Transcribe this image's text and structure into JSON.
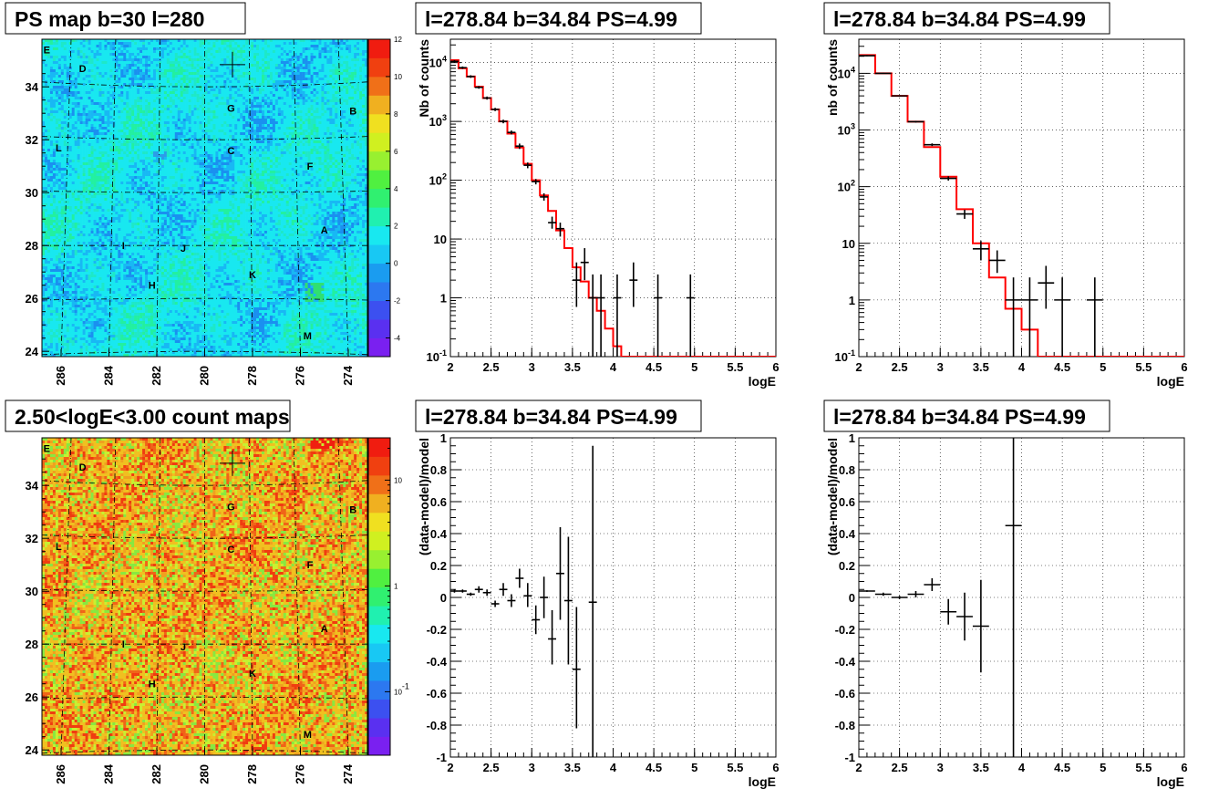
{
  "chart_data": [
    {
      "id": "psmap",
      "type": "heatmap",
      "title": "PS map b=30 l=280",
      "x_ticks": [
        "286",
        "284",
        "282",
        "280",
        "278",
        "276",
        "274"
      ],
      "y_ticks": [
        "24",
        "26",
        "28",
        "30",
        "32",
        "34"
      ],
      "xlim": [
        286.8,
        273.2
      ],
      "ylim": [
        23.8,
        35.8
      ],
      "palette_ticks": [
        "-4",
        "-2",
        "0",
        "2",
        "4",
        "6",
        "8",
        "10",
        "12"
      ],
      "palette_range": [
        -5,
        12
      ],
      "base_color": "#18e8f0",
      "regions": [
        {
          "label": "E",
          "l": 286.6,
          "b": 35.4
        },
        {
          "label": "D",
          "l": 285.1,
          "b": 34.7
        },
        {
          "label": "G",
          "l": 278.9,
          "b": 33.2
        },
        {
          "label": "B",
          "l": 273.8,
          "b": 33.1
        },
        {
          "label": "L",
          "l": 286.1,
          "b": 31.7
        },
        {
          "label": "C",
          "l": 278.9,
          "b": 31.6
        },
        {
          "label": "F",
          "l": 275.6,
          "b": 31.0
        },
        {
          "label": "A",
          "l": 275.0,
          "b": 28.6
        },
        {
          "label": "I",
          "l": 283.4,
          "b": 28.0
        },
        {
          "label": "J",
          "l": 280.9,
          "b": 27.9
        },
        {
          "label": "H",
          "l": 282.2,
          "b": 26.5
        },
        {
          "label": "K",
          "l": 278.0,
          "b": 26.9
        },
        {
          "label": "M",
          "l": 275.7,
          "b": 24.6
        }
      ],
      "marker": {
        "l": 278.84,
        "b": 34.84
      }
    },
    {
      "id": "countmap",
      "type": "heatmap",
      "title": "2.50<logE<3.00 count maps",
      "x_ticks": [
        "286",
        "284",
        "282",
        "280",
        "278",
        "276",
        "274"
      ],
      "y_ticks": [
        "24",
        "26",
        "28",
        "30",
        "32",
        "34"
      ],
      "xlim": [
        286.8,
        273.2
      ],
      "ylim": [
        23.8,
        35.8
      ],
      "palette_ticks": [
        "10",
        "1",
        "10-1"
      ],
      "palette_range_log": [
        -1.6,
        1.4
      ],
      "base_color": "#f0c020",
      "regions": [
        {
          "label": "E",
          "l": 286.6,
          "b": 35.4
        },
        {
          "label": "D",
          "l": 285.1,
          "b": 34.7
        },
        {
          "label": "G",
          "l": 278.9,
          "b": 33.2
        },
        {
          "label": "B",
          "l": 273.8,
          "b": 33.1
        },
        {
          "label": "L",
          "l": 286.1,
          "b": 31.7
        },
        {
          "label": "C",
          "l": 278.9,
          "b": 31.6
        },
        {
          "label": "F",
          "l": 275.6,
          "b": 31.0
        },
        {
          "label": "A",
          "l": 275.0,
          "b": 28.6
        },
        {
          "label": "I",
          "l": 283.4,
          "b": 28.0
        },
        {
          "label": "J",
          "l": 280.9,
          "b": 27.9
        },
        {
          "label": "H",
          "l": 282.2,
          "b": 26.5
        },
        {
          "label": "K",
          "l": 278.0,
          "b": 26.9
        },
        {
          "label": "M",
          "l": 275.7,
          "b": 24.6
        }
      ],
      "marker": {
        "l": 278.84,
        "b": 34.84
      }
    },
    {
      "id": "spec1",
      "type": "line",
      "title": "l=278.84 b=34.84 PS=4.99",
      "xlabel": "logE",
      "ylabel": "Nb of counts",
      "xlim": [
        2,
        6
      ],
      "ylim_log": [
        0.1,
        25000
      ],
      "x_ticks": [
        "2",
        "2.5",
        "3",
        "3.5",
        "4",
        "4.5",
        "5",
        "5.5",
        "6"
      ],
      "y_ticks": [
        "10-1",
        "1",
        "10",
        "102",
        "103",
        "104"
      ],
      "bin_width": 0.1,
      "model": [
        {
          "x0": 2.0,
          "x1": 2.1,
          "y": 11000
        },
        {
          "x0": 2.1,
          "x1": 2.2,
          "y": 8000
        },
        {
          "x0": 2.2,
          "x1": 2.3,
          "y": 5800
        },
        {
          "x0": 2.3,
          "x1": 2.4,
          "y": 3900
        },
        {
          "x0": 2.4,
          "x1": 2.5,
          "y": 2500
        },
        {
          "x0": 2.5,
          "x1": 2.6,
          "y": 1600
        },
        {
          "x0": 2.6,
          "x1": 2.7,
          "y": 1000
        },
        {
          "x0": 2.7,
          "x1": 2.8,
          "y": 620
        },
        {
          "x0": 2.8,
          "x1": 2.9,
          "y": 360
        },
        {
          "x0": 2.9,
          "x1": 3.0,
          "y": 190
        },
        {
          "x0": 3.0,
          "x1": 3.1,
          "y": 100
        },
        {
          "x0": 3.1,
          "x1": 3.2,
          "y": 55
        },
        {
          "x0": 3.2,
          "x1": 3.3,
          "y": 30
        },
        {
          "x0": 3.3,
          "x1": 3.4,
          "y": 14
        },
        {
          "x0": 3.4,
          "x1": 3.5,
          "y": 7
        },
        {
          "x0": 3.5,
          "x1": 3.6,
          "y": 3.3
        },
        {
          "x0": 3.6,
          "x1": 3.7,
          "y": 1.9
        },
        {
          "x0": 3.7,
          "x1": 3.8,
          "y": 1.0
        },
        {
          "x0": 3.8,
          "x1": 3.9,
          "y": 0.6
        },
        {
          "x0": 3.9,
          "x1": 4.0,
          "y": 0.3
        },
        {
          "x0": 4.0,
          "x1": 4.1,
          "y": 0.15
        },
        {
          "x0": 4.1,
          "x1": 6.0,
          "y": 0.1
        }
      ],
      "data": [
        {
          "x": 2.05,
          "y": 10500,
          "lo": 10000,
          "hi": 11000
        },
        {
          "x": 2.15,
          "y": 8200,
          "lo": 7800,
          "hi": 8600
        },
        {
          "x": 2.25,
          "y": 5800,
          "lo": 5500,
          "hi": 6100
        },
        {
          "x": 2.35,
          "y": 3800,
          "lo": 3600,
          "hi": 4000
        },
        {
          "x": 2.45,
          "y": 2500,
          "lo": 2350,
          "hi": 2650
        },
        {
          "x": 2.55,
          "y": 1600,
          "lo": 1500,
          "hi": 1700
        },
        {
          "x": 2.65,
          "y": 1000,
          "lo": 930,
          "hi": 1070
        },
        {
          "x": 2.75,
          "y": 650,
          "lo": 600,
          "hi": 700
        },
        {
          "x": 2.85,
          "y": 380,
          "lo": 340,
          "hi": 420
        },
        {
          "x": 2.95,
          "y": 180,
          "lo": 160,
          "hi": 200
        },
        {
          "x": 3.05,
          "y": 95,
          "lo": 85,
          "hi": 105
        },
        {
          "x": 3.15,
          "y": 52,
          "lo": 45,
          "hi": 60
        },
        {
          "x": 3.25,
          "y": 19,
          "lo": 15,
          "hi": 24
        },
        {
          "x": 3.35,
          "y": 15,
          "lo": 11,
          "hi": 19
        },
        {
          "x": 3.55,
          "y": 2,
          "lo": 0.7,
          "hi": 4
        },
        {
          "x": 3.65,
          "y": 4,
          "lo": 2,
          "hi": 7
        },
        {
          "x": 3.75,
          "y": 1,
          "lo": 0.1,
          "hi": 2.5
        },
        {
          "x": 3.85,
          "y": 1,
          "lo": 0.1,
          "hi": 2.5
        },
        {
          "x": 4.05,
          "y": 1,
          "lo": 0.1,
          "hi": 2.5
        },
        {
          "x": 4.25,
          "y": 2,
          "lo": 0.7,
          "hi": 4
        },
        {
          "x": 4.55,
          "y": 1,
          "lo": 0.1,
          "hi": 2.5
        },
        {
          "x": 4.95,
          "y": 1,
          "lo": 0.1,
          "hi": 2.5
        }
      ]
    },
    {
      "id": "spec2",
      "type": "line",
      "title": "l=278.84 b=34.84 PS=4.99",
      "xlabel": "logE",
      "ylabel": "nb of counts",
      "xlim": [
        2,
        6
      ],
      "ylim_log": [
        0.1,
        40000
      ],
      "x_ticks": [
        "2",
        "2.5",
        "3",
        "3.5",
        "4",
        "4.5",
        "5",
        "5.5",
        "6"
      ],
      "y_ticks": [
        "10-1",
        "1",
        "10",
        "102",
        "103",
        "104"
      ],
      "bin_width": 0.2,
      "model": [
        {
          "x0": 2.0,
          "x1": 2.2,
          "y": 21000
        },
        {
          "x0": 2.2,
          "x1": 2.4,
          "y": 10000
        },
        {
          "x0": 2.4,
          "x1": 2.6,
          "y": 4000
        },
        {
          "x0": 2.6,
          "x1": 2.8,
          "y": 1400
        },
        {
          "x0": 2.8,
          "x1": 3.0,
          "y": 500
        },
        {
          "x0": 3.0,
          "x1": 3.2,
          "y": 150
        },
        {
          "x0": 3.2,
          "x1": 3.4,
          "y": 40
        },
        {
          "x0": 3.4,
          "x1": 3.6,
          "y": 10
        },
        {
          "x0": 3.6,
          "x1": 3.8,
          "y": 2.5
        },
        {
          "x0": 3.8,
          "x1": 4.0,
          "y": 0.7
        },
        {
          "x0": 4.0,
          "x1": 4.2,
          "y": 0.3
        },
        {
          "x0": 4.2,
          "x1": 6.0,
          "y": 0.1
        }
      ],
      "data": [
        {
          "x": 2.1,
          "y": 20500,
          "lo": 20000,
          "hi": 21000
        },
        {
          "x": 2.3,
          "y": 10000,
          "lo": 9800,
          "hi": 10200
        },
        {
          "x": 2.5,
          "y": 4000,
          "lo": 3900,
          "hi": 4100
        },
        {
          "x": 2.7,
          "y": 1400,
          "lo": 1350,
          "hi": 1450
        },
        {
          "x": 2.9,
          "y": 550,
          "lo": 520,
          "hi": 580
        },
        {
          "x": 3.1,
          "y": 140,
          "lo": 128,
          "hi": 152
        },
        {
          "x": 3.3,
          "y": 33,
          "lo": 27,
          "hi": 39
        },
        {
          "x": 3.5,
          "y": 8,
          "lo": 5,
          "hi": 11
        },
        {
          "x": 3.7,
          "y": 5,
          "lo": 3,
          "hi": 7.5
        },
        {
          "x": 3.9,
          "y": 1,
          "lo": 0.1,
          "hi": 2.5
        },
        {
          "x": 4.1,
          "y": 1,
          "lo": 0.1,
          "hi": 2.5
        },
        {
          "x": 4.3,
          "y": 2,
          "lo": 0.7,
          "hi": 4
        },
        {
          "x": 4.5,
          "y": 1,
          "lo": 0.1,
          "hi": 2.5
        },
        {
          "x": 4.9,
          "y": 1,
          "lo": 0.1,
          "hi": 2.5
        }
      ]
    },
    {
      "id": "res1",
      "type": "scatter",
      "title": "l=278.84 b=34.84 PS=4.99",
      "xlabel": "logE",
      "ylabel": "(data-model)/model",
      "xlim": [
        2,
        6
      ],
      "ylim": [
        -1,
        1
      ],
      "x_ticks": [
        "2",
        "2.5",
        "3",
        "3.5",
        "4",
        "4.5",
        "5",
        "5.5",
        "6"
      ],
      "y_ticks": [
        "-1",
        "-0.8",
        "-0.6",
        "-0.4",
        "-0.2",
        "0",
        "0.2",
        "0.4",
        "0.6",
        "0.8",
        "1"
      ],
      "bin_width": 0.1,
      "data": [
        {
          "x": 2.05,
          "y": 0.04,
          "lo": 0.03,
          "hi": 0.05
        },
        {
          "x": 2.15,
          "y": 0.04,
          "lo": 0.03,
          "hi": 0.05
        },
        {
          "x": 2.25,
          "y": 0.02,
          "lo": 0.01,
          "hi": 0.03
        },
        {
          "x": 2.35,
          "y": 0.05,
          "lo": 0.03,
          "hi": 0.07
        },
        {
          "x": 2.45,
          "y": 0.03,
          "lo": 0.01,
          "hi": 0.05
        },
        {
          "x": 2.55,
          "y": -0.04,
          "lo": -0.06,
          "hi": -0.02
        },
        {
          "x": 2.65,
          "y": 0.05,
          "lo": 0.01,
          "hi": 0.09
        },
        {
          "x": 2.75,
          "y": -0.02,
          "lo": -0.06,
          "hi": 0.02
        },
        {
          "x": 2.85,
          "y": 0.12,
          "lo": 0.06,
          "hi": 0.18
        },
        {
          "x": 2.95,
          "y": 0.01,
          "lo": -0.06,
          "hi": 0.09
        },
        {
          "x": 3.05,
          "y": -0.14,
          "lo": -0.23,
          "hi": -0.05
        },
        {
          "x": 3.15,
          "y": 0.0,
          "lo": -0.13,
          "hi": 0.13
        },
        {
          "x": 3.25,
          "y": -0.26,
          "lo": -0.42,
          "hi": -0.08
        },
        {
          "x": 3.35,
          "y": 0.15,
          "lo": -0.14,
          "hi": 0.44
        },
        {
          "x": 3.45,
          "y": -0.02,
          "lo": -0.42,
          "hi": 0.38
        },
        {
          "x": 3.55,
          "y": -0.45,
          "lo": -0.82,
          "hi": -0.06
        },
        {
          "x": 3.75,
          "y": -0.03,
          "lo": -1.0,
          "hi": 0.95
        }
      ]
    },
    {
      "id": "res2",
      "type": "scatter",
      "title": "l=278.84 b=34.84 PS=4.99",
      "xlabel": "logE",
      "ylabel": "(data-model)/model",
      "xlim": [
        2,
        6
      ],
      "ylim": [
        -1,
        1
      ],
      "x_ticks": [
        "2",
        "2.5",
        "3",
        "3.5",
        "4",
        "4.5",
        "5",
        "5.5",
        "6"
      ],
      "y_ticks": [
        "-1",
        "-0.8",
        "-0.6",
        "-0.4",
        "-0.2",
        "0",
        "0.2",
        "0.4",
        "0.6",
        "0.8",
        "1"
      ],
      "bin_width": 0.2,
      "data": [
        {
          "x": 2.1,
          "y": 0.04,
          "lo": 0.035,
          "hi": 0.045
        },
        {
          "x": 2.3,
          "y": 0.02,
          "lo": 0.01,
          "hi": 0.03
        },
        {
          "x": 2.5,
          "y": 0.0,
          "lo": -0.01,
          "hi": 0.01
        },
        {
          "x": 2.7,
          "y": 0.02,
          "lo": 0.0,
          "hi": 0.04
        },
        {
          "x": 2.9,
          "y": 0.08,
          "lo": 0.04,
          "hi": 0.12
        },
        {
          "x": 3.1,
          "y": -0.09,
          "lo": -0.17,
          "hi": -0.01
        },
        {
          "x": 3.3,
          "y": -0.12,
          "lo": -0.27,
          "hi": 0.03
        },
        {
          "x": 3.5,
          "y": -0.18,
          "lo": -0.47,
          "hi": 0.11
        },
        {
          "x": 3.9,
          "y": 0.45,
          "lo": -1.0,
          "hi": 1.0
        }
      ]
    }
  ]
}
